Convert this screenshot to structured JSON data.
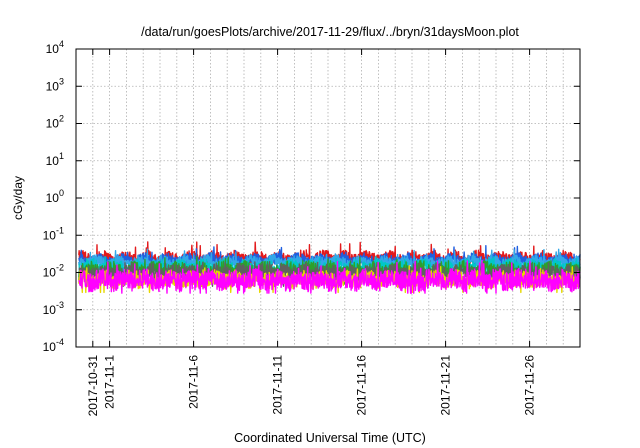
{
  "chart_data": {
    "type": "line",
    "title": "/data/run/goesPlots/archive/2017-11-29/flux/../bryn/31daysMoon.plot",
    "xlabel": "Coordinated Universal Time (UTC)",
    "ylabel": "cGy/day",
    "x_range": [
      "2017-10-30T00:00",
      "2017-11-29T00:00"
    ],
    "y_scale": "log",
    "ylim": [
      0.0001,
      10000
    ],
    "grid": true,
    "x_ticks": [
      {
        "date": "2017-10-31",
        "label": "2017-10-31"
      },
      {
        "date": "2017-11-01",
        "label": "2017-11-1"
      },
      {
        "date": "2017-11-06",
        "label": "2017-11-6"
      },
      {
        "date": "2017-11-11",
        "label": "2017-11-11"
      },
      {
        "date": "2017-11-16",
        "label": "2017-11-16"
      },
      {
        "date": "2017-11-21",
        "label": "2017-11-21"
      },
      {
        "date": "2017-11-26",
        "label": "2017-11-26"
      }
    ],
    "y_ticks": [
      {
        "base": "10",
        "exp": "-4",
        "value": 0.0001
      },
      {
        "base": "10",
        "exp": "-3",
        "value": 0.001
      },
      {
        "base": "10",
        "exp": "-2",
        "value": 0.01
      },
      {
        "base": "10",
        "exp": "-1",
        "value": 0.1
      },
      {
        "base": "10",
        "exp": "0",
        "value": 1
      },
      {
        "base": "10",
        "exp": "1",
        "value": 10
      },
      {
        "base": "10",
        "exp": "2",
        "value": 100
      },
      {
        "base": "10",
        "exp": "3",
        "value": 1000
      },
      {
        "base": "10",
        "exp": "4",
        "value": 10000
      }
    ],
    "series": [
      {
        "color": "#e31a1c",
        "base": 0.024,
        "spread": 0.16,
        "spike": 0.045
      },
      {
        "color": "#1f5fe0",
        "base": 0.021,
        "spread": 0.15,
        "spike": 0.035
      },
      {
        "color": "#33a8e8",
        "base": 0.019,
        "spread": 0.14,
        "spike": 0.03
      },
      {
        "color": "#00c8c8",
        "base": 0.014,
        "spread": 0.17,
        "spike": 0.02
      },
      {
        "color": "#2ca02c",
        "base": 0.011,
        "spread": 0.22,
        "spike": 0.018
      },
      {
        "color": "#606060",
        "base": 0.0095,
        "spread": 0.22,
        "spike": 0.014
      },
      {
        "color": "#e6d800",
        "base": 0.0065,
        "spread": 0.2,
        "spike": 0.01
      },
      {
        "color": "#ff00ff",
        "base": 0.0062,
        "spread": 0.26,
        "spike": 0.015
      }
    ]
  }
}
